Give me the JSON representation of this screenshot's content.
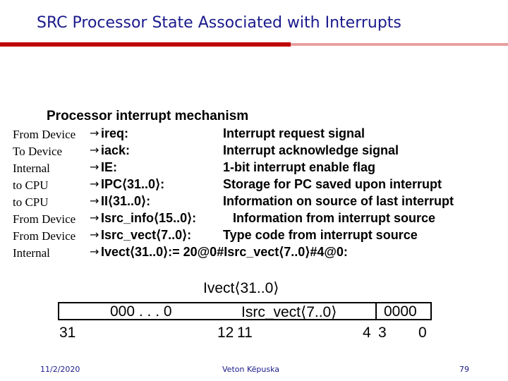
{
  "title": "SRC Processor State Associated with Interrupts",
  "heading": "Processor interrupt mechanism",
  "arrow_glyph": "→",
  "rows": [
    {
      "source": "From Device",
      "signal": "ireq:",
      "description": "Interrupt request signal"
    },
    {
      "source": "To Device",
      "signal": "iack:",
      "description": "Interrupt acknowledge signal"
    },
    {
      "source": "Internal",
      "signal": "IE:",
      "description": "1-bit interrupt enable flag"
    },
    {
      "source": "to CPU",
      "signal": "IPC⟨31..0⟩:",
      "description": "Storage for PC saved upon interrupt"
    },
    {
      "source": "to CPU",
      "signal": "II⟨31..0⟩:",
      "description": "Information on source of last interrupt"
    },
    {
      "source": "From Device",
      "signal": "Isrc_info⟨15..0⟩:",
      "description": "Information from interrupt source"
    },
    {
      "source": "From Device",
      "signal": "Isrc_vect⟨7..0⟩:",
      "description": "Type code from interrupt source"
    },
    {
      "source": "Internal",
      "signal": "Ivect⟨31..0⟩:= 20@0#Isrc_vect⟨7..0⟩#4@0:",
      "description": ""
    }
  ],
  "register": {
    "title": "Ivect⟨31..0⟩",
    "fields": [
      "000 . . . 0",
      "Isrc_vect⟨7..0⟩",
      "0000"
    ],
    "bits": [
      "31",
      "12",
      "11",
      "4",
      "3",
      "0"
    ]
  },
  "footer": {
    "date": "11/2/2020",
    "author": "Veton Këpuska",
    "page": "79"
  }
}
